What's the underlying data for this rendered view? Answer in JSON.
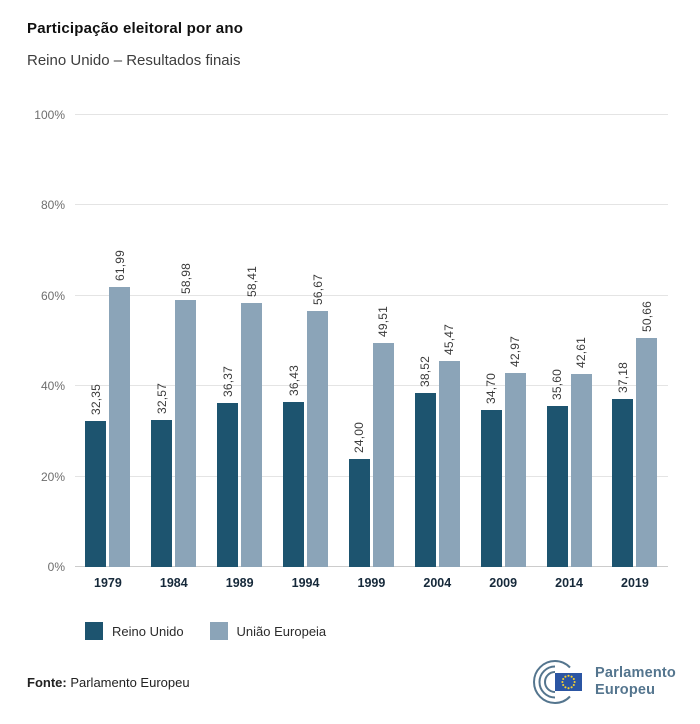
{
  "header": {
    "title": "Participação eleitoral por ano",
    "subtitle": "Reino Unido – Resultados finais"
  },
  "chart_data": {
    "type": "bar",
    "title": "Participação eleitoral por ano",
    "subtitle": "Reino Unido – Resultados finais",
    "categories": [
      "1979",
      "1984",
      "1989",
      "1994",
      "1999",
      "2004",
      "2009",
      "2014",
      "2019"
    ],
    "series": [
      {
        "name": "Reino Unido",
        "color": "#1d546f",
        "values": [
          32.35,
          32.57,
          36.37,
          36.43,
          24.0,
          38.52,
          34.7,
          35.6,
          37.18
        ]
      },
      {
        "name": "União Europeia",
        "color": "#8ba4b8",
        "values": [
          61.99,
          58.98,
          58.41,
          56.67,
          49.51,
          45.47,
          42.97,
          42.61,
          50.66
        ]
      }
    ],
    "ylim": [
      0,
      100
    ],
    "yticks": [
      0,
      20,
      40,
      60,
      80,
      100
    ],
    "ytick_suffix": "%",
    "grid": true,
    "legend_position": "bottom",
    "value_label_decimal_separator": ","
  },
  "footer": {
    "source_label": "Fonte:",
    "source_value": " Parlamento Europeu"
  },
  "logo": {
    "line1": "Parlamento",
    "line2": "Europeu"
  }
}
